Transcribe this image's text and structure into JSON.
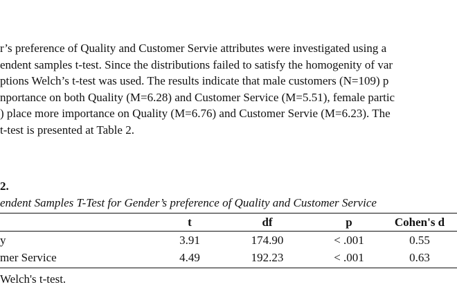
{
  "paragraph": {
    "lines": [
      "r’s preference of  Quality and Customer Servie attributes were investigated using a",
      "endent samples t-test. Since the distributions failed to satisfy the homogenity of var",
      "ptions Welch’s t-test was used. The results indicate that male customers (N=109) p",
      "nportance on both Quality (M=6.28) and Customer Service (M=5.51), female partic",
      ") place more importance on Quality (M=6.76) and Customer Servie (M=6.23). The",
      "t-test is presented at Table 2."
    ]
  },
  "table": {
    "number": "2.",
    "title": "endent Samples T-Test for Gender’s preference of Quality and Customer Service",
    "columns": [
      "t",
      "df",
      "p",
      "Cohen's d"
    ],
    "rows": [
      {
        "label": "y",
        "t": "3.91",
        "df": "174.90",
        "p": "< .001",
        "d": "0.55"
      },
      {
        "label": "mer Service",
        "t": "4.49",
        "df": "192.23",
        "p": "< .001",
        "d": "0.63"
      }
    ],
    "note": "Welch's t-test."
  }
}
